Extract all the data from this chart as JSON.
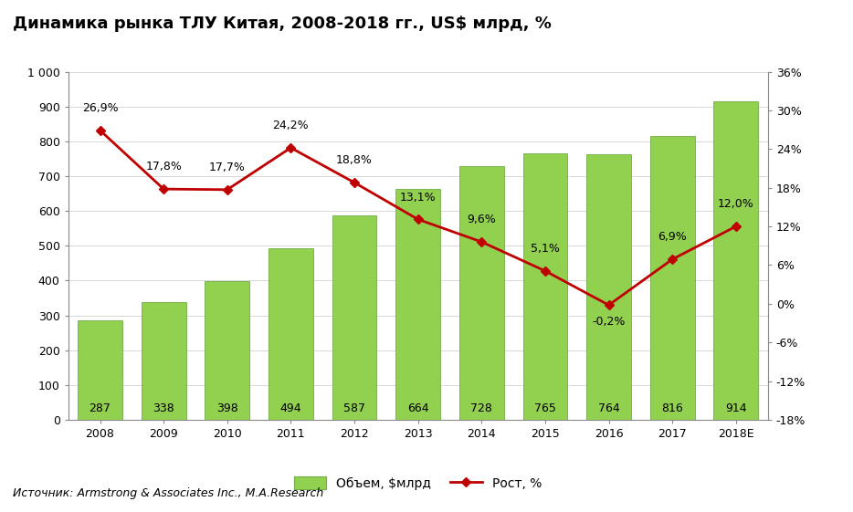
{
  "title": "Динамика рынка ТЛУ Китая, 2008-2018 гг., US$ млрд, %",
  "categories": [
    "2008",
    "2009",
    "2010",
    "2011",
    "2012",
    "2013",
    "2014",
    "2015",
    "2016",
    "2017",
    "2018E"
  ],
  "volumes": [
    287,
    338,
    398,
    494,
    587,
    664,
    728,
    765,
    764,
    816,
    914
  ],
  "growth": [
    26.9,
    17.8,
    17.7,
    24.2,
    18.8,
    13.1,
    9.6,
    5.1,
    -0.2,
    6.9,
    12.0
  ],
  "growth_labels": [
    "26,9%",
    "17,8%",
    "17,7%",
    "24,2%",
    "18,8%",
    "13,1%",
    "9,6%",
    "5,1%",
    "-0,2%",
    "6,9%",
    "12,0%"
  ],
  "bar_color": "#92D050",
  "bar_edge_color": "#70AD47",
  "line_color": "#C00000",
  "marker_color": "#C00000",
  "background_color": "#FFFFFF",
  "title_fontsize": 13,
  "label_fontsize": 9,
  "tick_fontsize": 9,
  "growth_label_fontsize": 9,
  "legend_label_bar": "Объем, $млрд",
  "legend_label_line": "Рост, %",
  "source_text": "Источник: Armstrong & Associates Inc., M.A.Research",
  "ylim_left": [
    0,
    1000
  ],
  "ylim_right": [
    -18,
    36
  ],
  "yticks_left": [
    0,
    100,
    200,
    300,
    400,
    500,
    600,
    700,
    800,
    900,
    1000
  ],
  "yticks_right": [
    -18,
    -12,
    -6,
    0,
    6,
    12,
    18,
    24,
    30,
    36
  ],
  "ytick_labels_left": [
    "0",
    "100",
    "200",
    "300",
    "400",
    "500",
    "600",
    "700",
    "800",
    "900",
    "1 000"
  ],
  "ytick_labels_right": [
    "-18%",
    "-12%",
    "-6%",
    "0%",
    "6%",
    "12%",
    "18%",
    "24%",
    "30%",
    "36%"
  ],
  "growth_label_offsets": [
    2.5,
    2.5,
    2.5,
    2.5,
    2.5,
    2.5,
    2.5,
    2.5,
    -3.5,
    2.5,
    2.5
  ]
}
